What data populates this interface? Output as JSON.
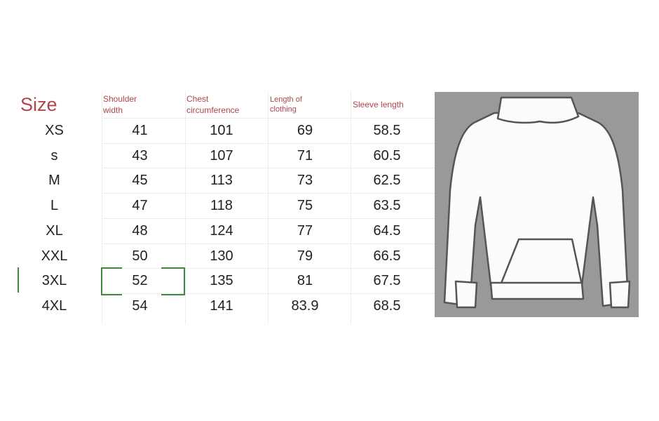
{
  "headers": [
    "Size",
    "Shoulder width",
    "Chest circumference",
    "Length of clothing",
    "Sleeve length"
  ],
  "header_lines": {
    "shoulder": [
      "Shoulder",
      "width"
    ],
    "chest": [
      "Chest",
      "circumference"
    ],
    "length": [
      "Length of",
      "clothing"
    ]
  },
  "rows": [
    {
      "size": "XS",
      "shoulder": "41",
      "chest": "101",
      "length": "69",
      "sleeve": "58.5"
    },
    {
      "size": "s",
      "shoulder": "43",
      "chest": "107",
      "length": "71",
      "sleeve": "60.5"
    },
    {
      "size": "M",
      "shoulder": "45",
      "chest": "113",
      "length": "73",
      "sleeve": "62.5"
    },
    {
      "size": "L",
      "shoulder": "47",
      "chest": "118",
      "length": "75",
      "sleeve": "63.5"
    },
    {
      "size": "XL",
      "shoulder": "48",
      "chest": "124",
      "length": "77",
      "sleeve": "64.5"
    },
    {
      "size": "XXL",
      "shoulder": "50",
      "chest": "130",
      "length": "79",
      "sleeve": "66.5"
    },
    {
      "size": "3XL",
      "shoulder": "52",
      "chest": "135",
      "length": "81",
      "sleeve": "67.5"
    },
    {
      "size": "4XL",
      "shoulder": "54",
      "chest": "141",
      "length": "83.9",
      "sleeve": "68.5"
    }
  ],
  "colors": {
    "header_text": "#b0454c",
    "selection": "#3f8a3c",
    "photo_bg": "#999999"
  },
  "image": {
    "icon": "hoodie-illustration"
  }
}
